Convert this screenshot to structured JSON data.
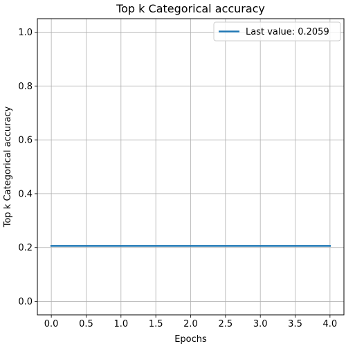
{
  "chart_data": {
    "type": "line",
    "title": "Top k Categorical accuracy",
    "xlabel": "Epochs",
    "ylabel": "Top k Categorical accuracy",
    "xlim": [
      -0.2,
      4.2
    ],
    "ylim": [
      -0.05,
      1.05
    ],
    "x_ticks": [
      0.0,
      0.5,
      1.0,
      1.5,
      2.0,
      2.5,
      3.0,
      3.5,
      4.0
    ],
    "x_tick_labels": [
      "0.0",
      "0.5",
      "1.0",
      "1.5",
      "2.0",
      "2.5",
      "3.0",
      "3.5",
      "4.0"
    ],
    "y_ticks": [
      0.0,
      0.2,
      0.4,
      0.6,
      0.8,
      1.0
    ],
    "y_tick_labels": [
      "0.0",
      "0.2",
      "0.4",
      "0.6",
      "0.8",
      "1.0"
    ],
    "grid": true,
    "legend_position": "top-right",
    "series": [
      {
        "name": "Last value: 0.2059",
        "color": "#1f77b4",
        "x": [
          0,
          1,
          2,
          3,
          4
        ],
        "y": [
          0.2059,
          0.2059,
          0.2059,
          0.2059,
          0.2059
        ]
      }
    ]
  }
}
